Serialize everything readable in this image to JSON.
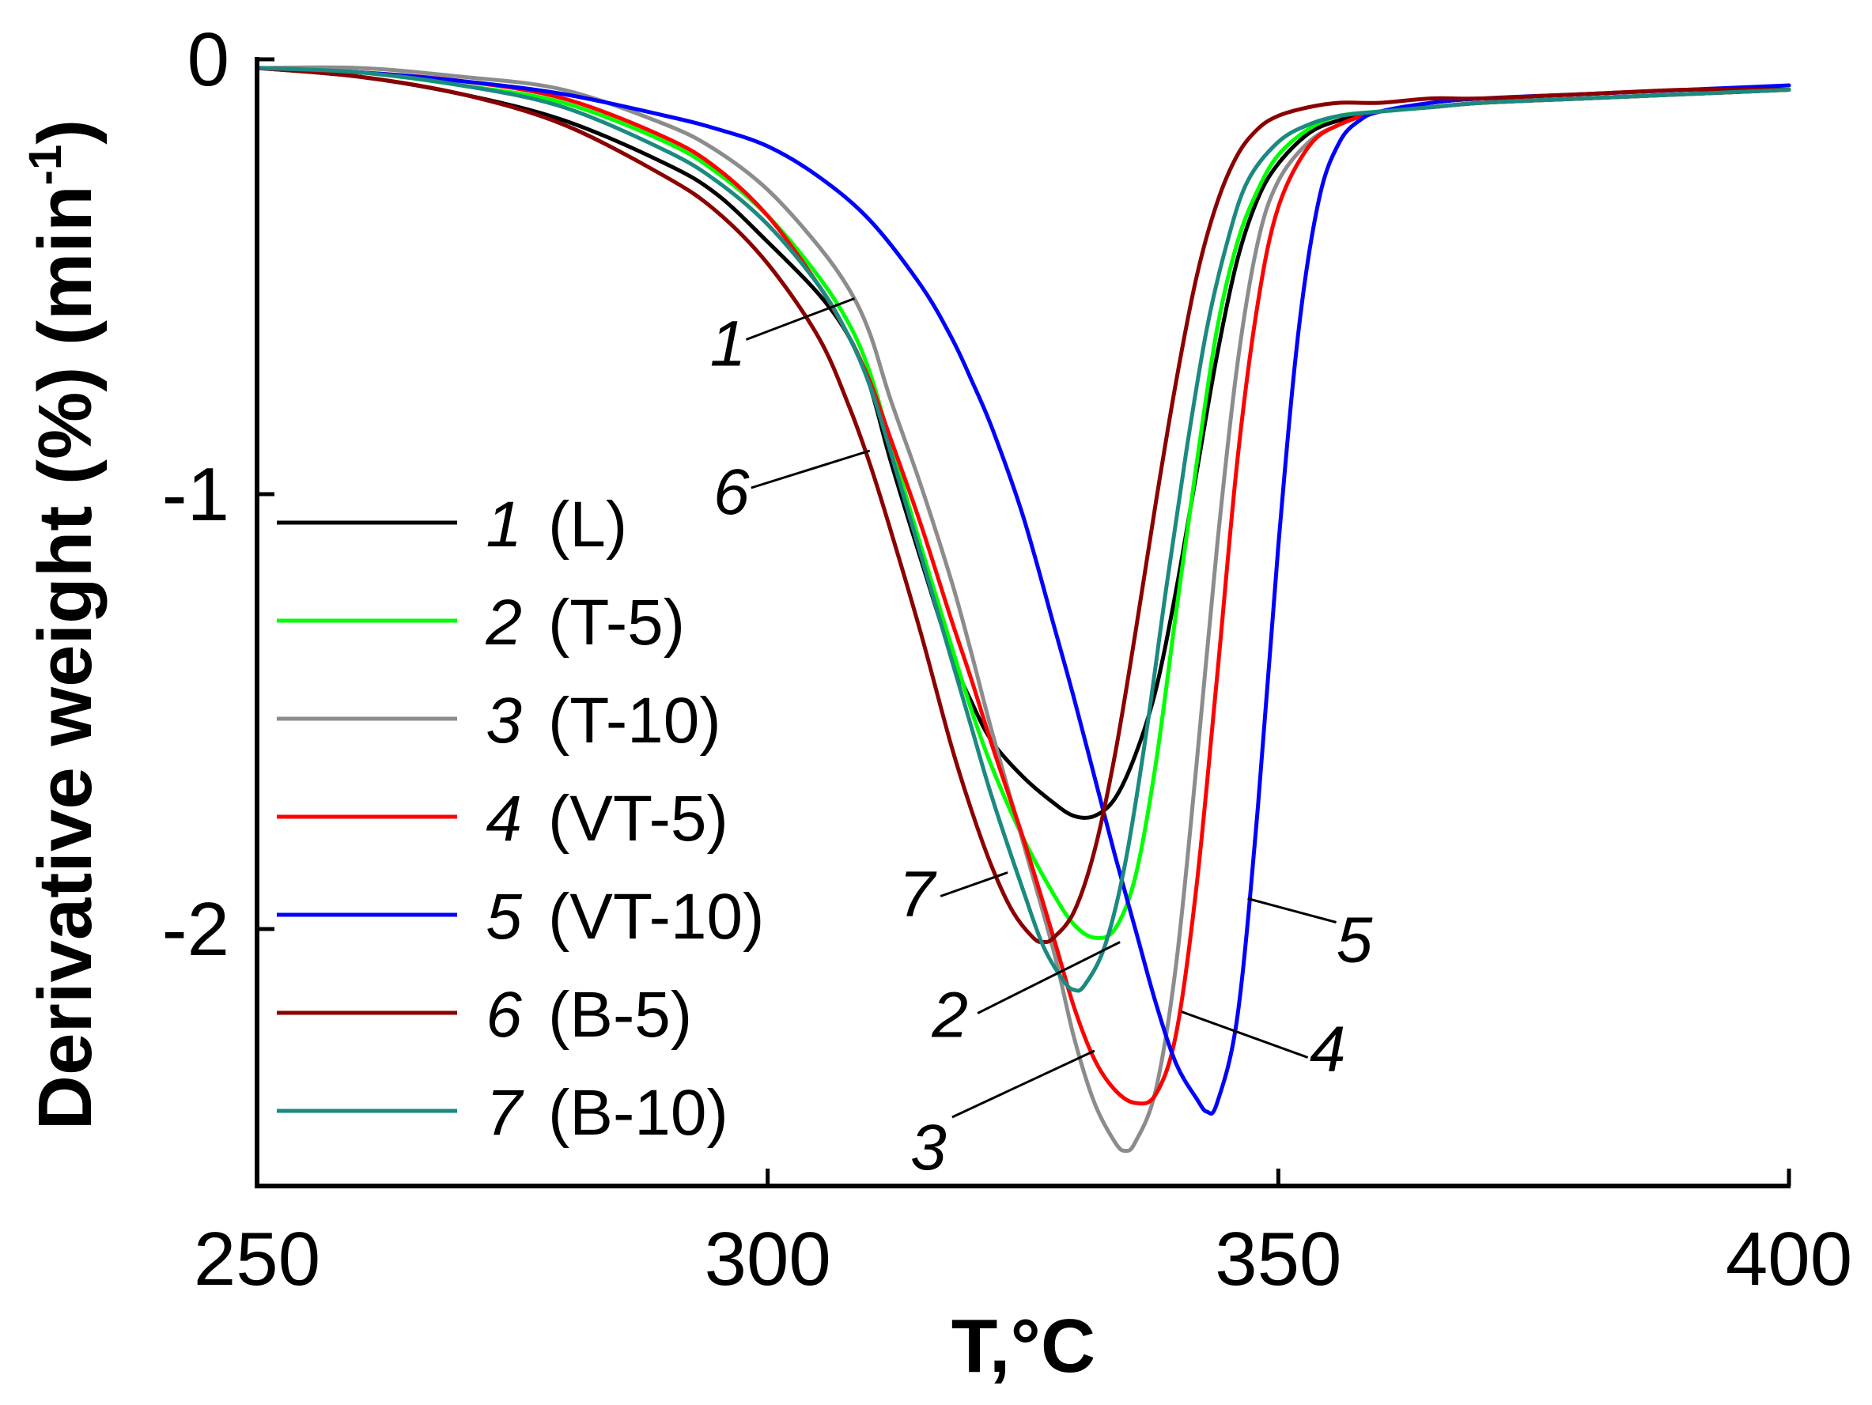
{
  "chart_data": {
    "type": "line",
    "xlabel": "T,°C",
    "ylabel": "Derivative weight (%) (min",
    "ylabel_superscript": "-1",
    "ylabel_suffix": ")",
    "xlim": [
      250,
      400
    ],
    "ylim": [
      -2.55,
      0.05
    ],
    "xticks": [
      250,
      300,
      350,
      400
    ],
    "xtick_labels": [
      "250",
      "300",
      "350",
      "400"
    ],
    "yticks": [
      0,
      -1,
      -2
    ],
    "ytick_labels": [
      "0",
      "-1",
      "-2"
    ],
    "grid": false,
    "legend_position": "left",
    "series": [
      {
        "id": "1",
        "name": "(L)",
        "color": "#000000",
        "points": [
          [
            250,
            -0.02
          ],
          [
            260,
            -0.04
          ],
          [
            270,
            -0.08
          ],
          [
            280,
            -0.14
          ],
          [
            290,
            -0.24
          ],
          [
            295,
            -0.31
          ],
          [
            300,
            -0.42
          ],
          [
            305,
            -0.54
          ],
          [
            308,
            -0.64
          ],
          [
            310,
            -0.75
          ],
          [
            312,
            -0.92
          ],
          [
            315,
            -1.15
          ],
          [
            318,
            -1.37
          ],
          [
            320,
            -1.48
          ],
          [
            322,
            -1.57
          ],
          [
            325,
            -1.65
          ],
          [
            328,
            -1.71
          ],
          [
            330,
            -1.74
          ],
          [
            332,
            -1.74
          ],
          [
            334,
            -1.7
          ],
          [
            336,
            -1.6
          ],
          [
            338,
            -1.45
          ],
          [
            340,
            -1.22
          ],
          [
            342,
            -0.95
          ],
          [
            344,
            -0.68
          ],
          [
            346,
            -0.46
          ],
          [
            348,
            -0.32
          ],
          [
            350,
            -0.24
          ],
          [
            353,
            -0.17
          ],
          [
            356,
            -0.14
          ],
          [
            360,
            -0.12
          ],
          [
            365,
            -0.11
          ],
          [
            370,
            -0.1
          ],
          [
            380,
            -0.09
          ],
          [
            390,
            -0.08
          ],
          [
            400,
            -0.07
          ]
        ]
      },
      {
        "id": "2",
        "name": "(T-5)",
        "color": "#00ff00",
        "points": [
          [
            250,
            -0.02
          ],
          [
            260,
            -0.03
          ],
          [
            270,
            -0.06
          ],
          [
            280,
            -0.1
          ],
          [
            290,
            -0.19
          ],
          [
            295,
            -0.26
          ],
          [
            300,
            -0.36
          ],
          [
            305,
            -0.5
          ],
          [
            308,
            -0.61
          ],
          [
            310,
            -0.72
          ],
          [
            312,
            -0.88
          ],
          [
            315,
            -1.12
          ],
          [
            318,
            -1.35
          ],
          [
            320,
            -1.5
          ],
          [
            322,
            -1.63
          ],
          [
            325,
            -1.79
          ],
          [
            328,
            -1.92
          ],
          [
            330,
            -1.99
          ],
          [
            332,
            -2.02
          ],
          [
            334,
            -2.0
          ],
          [
            336,
            -1.88
          ],
          [
            338,
            -1.62
          ],
          [
            340,
            -1.27
          ],
          [
            342,
            -0.93
          ],
          [
            344,
            -0.62
          ],
          [
            346,
            -0.42
          ],
          [
            348,
            -0.3
          ],
          [
            350,
            -0.22
          ],
          [
            353,
            -0.16
          ],
          [
            356,
            -0.13
          ],
          [
            360,
            -0.12
          ],
          [
            365,
            -0.11
          ],
          [
            370,
            -0.1
          ],
          [
            380,
            -0.09
          ],
          [
            390,
            -0.08
          ],
          [
            400,
            -0.07
          ]
        ]
      },
      {
        "id": "3",
        "name": "(T-10)",
        "color": "#8c8c8c",
        "points": [
          [
            250,
            -0.02
          ],
          [
            260,
            -0.02
          ],
          [
            270,
            -0.04
          ],
          [
            280,
            -0.07
          ],
          [
            290,
            -0.15
          ],
          [
            295,
            -0.21
          ],
          [
            300,
            -0.3
          ],
          [
            305,
            -0.43
          ],
          [
            308,
            -0.53
          ],
          [
            310,
            -0.63
          ],
          [
            312,
            -0.78
          ],
          [
            315,
            -0.98
          ],
          [
            318,
            -1.2
          ],
          [
            320,
            -1.37
          ],
          [
            322,
            -1.55
          ],
          [
            325,
            -1.8
          ],
          [
            328,
            -2.05
          ],
          [
            330,
            -2.25
          ],
          [
            332,
            -2.4
          ],
          [
            334,
            -2.49
          ],
          [
            335,
            -2.51
          ],
          [
            336,
            -2.49
          ],
          [
            338,
            -2.37
          ],
          [
            340,
            -2.08
          ],
          [
            342,
            -1.62
          ],
          [
            344,
            -1.12
          ],
          [
            346,
            -0.7
          ],
          [
            348,
            -0.42
          ],
          [
            350,
            -0.28
          ],
          [
            353,
            -0.19
          ],
          [
            356,
            -0.15
          ],
          [
            360,
            -0.12
          ],
          [
            365,
            -0.11
          ],
          [
            370,
            -0.1
          ],
          [
            380,
            -0.09
          ],
          [
            390,
            -0.08
          ],
          [
            400,
            -0.07
          ]
        ]
      },
      {
        "id": "4",
        "name": "(VT-5)",
        "color": "#ff0000",
        "points": [
          [
            250,
            -0.02
          ],
          [
            260,
            -0.03
          ],
          [
            270,
            -0.05
          ],
          [
            280,
            -0.09
          ],
          [
            290,
            -0.18
          ],
          [
            295,
            -0.25
          ],
          [
            300,
            -0.36
          ],
          [
            305,
            -0.52
          ],
          [
            308,
            -0.64
          ],
          [
            310,
            -0.74
          ],
          [
            312,
            -0.87
          ],
          [
            315,
            -1.07
          ],
          [
            318,
            -1.29
          ],
          [
            320,
            -1.43
          ],
          [
            322,
            -1.58
          ],
          [
            325,
            -1.79
          ],
          [
            328,
            -2.02
          ],
          [
            330,
            -2.18
          ],
          [
            332,
            -2.3
          ],
          [
            334,
            -2.37
          ],
          [
            336,
            -2.4
          ],
          [
            338,
            -2.38
          ],
          [
            340,
            -2.24
          ],
          [
            342,
            -1.9
          ],
          [
            344,
            -1.42
          ],
          [
            346,
            -0.92
          ],
          [
            348,
            -0.56
          ],
          [
            350,
            -0.34
          ],
          [
            353,
            -0.2
          ],
          [
            356,
            -0.15
          ],
          [
            360,
            -0.12
          ],
          [
            365,
            -0.11
          ],
          [
            370,
            -0.1
          ],
          [
            380,
            -0.09
          ],
          [
            390,
            -0.08
          ],
          [
            400,
            -0.07
          ]
        ]
      },
      {
        "id": "5",
        "name": "(VT-10)",
        "color": "#0000ff",
        "points": [
          [
            250,
            -0.02
          ],
          [
            260,
            -0.03
          ],
          [
            270,
            -0.05
          ],
          [
            280,
            -0.08
          ],
          [
            290,
            -0.13
          ],
          [
            295,
            -0.16
          ],
          [
            300,
            -0.2
          ],
          [
            305,
            -0.27
          ],
          [
            310,
            -0.37
          ],
          [
            315,
            -0.52
          ],
          [
            318,
            -0.64
          ],
          [
            320,
            -0.74
          ],
          [
            322,
            -0.85
          ],
          [
            325,
            -1.05
          ],
          [
            328,
            -1.3
          ],
          [
            330,
            -1.47
          ],
          [
            332,
            -1.65
          ],
          [
            334,
            -1.83
          ],
          [
            336,
            -2.0
          ],
          [
            338,
            -2.17
          ],
          [
            340,
            -2.31
          ],
          [
            342,
            -2.39
          ],
          [
            343,
            -2.42
          ],
          [
            344,
            -2.4
          ],
          [
            346,
            -2.2
          ],
          [
            348,
            -1.72
          ],
          [
            350,
            -1.12
          ],
          [
            352,
            -0.62
          ],
          [
            354,
            -0.32
          ],
          [
            356,
            -0.19
          ],
          [
            358,
            -0.14
          ],
          [
            360,
            -0.12
          ],
          [
            365,
            -0.1
          ],
          [
            370,
            -0.09
          ],
          [
            380,
            -0.08
          ],
          [
            390,
            -0.07
          ],
          [
            400,
            -0.06
          ]
        ]
      },
      {
        "id": "6",
        "name": "(B-5)",
        "color": "#8b0000",
        "points": [
          [
            250,
            -0.02
          ],
          [
            260,
            -0.04
          ],
          [
            270,
            -0.08
          ],
          [
            280,
            -0.15
          ],
          [
            290,
            -0.27
          ],
          [
            295,
            -0.35
          ],
          [
            300,
            -0.47
          ],
          [
            305,
            -0.64
          ],
          [
            308,
            -0.8
          ],
          [
            310,
            -0.93
          ],
          [
            312,
            -1.08
          ],
          [
            315,
            -1.32
          ],
          [
            318,
            -1.58
          ],
          [
            320,
            -1.73
          ],
          [
            322,
            -1.86
          ],
          [
            324,
            -1.96
          ],
          [
            326,
            -2.02
          ],
          [
            327,
            -2.03
          ],
          [
            328,
            -2.02
          ],
          [
            330,
            -1.96
          ],
          [
            332,
            -1.82
          ],
          [
            334,
            -1.6
          ],
          [
            336,
            -1.32
          ],
          [
            338,
            -1.02
          ],
          [
            340,
            -0.74
          ],
          [
            342,
            -0.5
          ],
          [
            344,
            -0.33
          ],
          [
            346,
            -0.22
          ],
          [
            348,
            -0.16
          ],
          [
            350,
            -0.13
          ],
          [
            353,
            -0.11
          ],
          [
            356,
            -0.1
          ],
          [
            360,
            -0.1
          ],
          [
            365,
            -0.09
          ],
          [
            370,
            -0.09
          ],
          [
            380,
            -0.08
          ],
          [
            390,
            -0.07
          ],
          [
            400,
            -0.07
          ]
        ]
      },
      {
        "id": "7",
        "name": "(B-10)",
        "color": "#1b8a80",
        "points": [
          [
            250,
            -0.02
          ],
          [
            260,
            -0.03
          ],
          [
            270,
            -0.06
          ],
          [
            280,
            -0.11
          ],
          [
            290,
            -0.21
          ],
          [
            295,
            -0.28
          ],
          [
            300,
            -0.38
          ],
          [
            305,
            -0.52
          ],
          [
            308,
            -0.64
          ],
          [
            310,
            -0.75
          ],
          [
            312,
            -0.9
          ],
          [
            315,
            -1.14
          ],
          [
            318,
            -1.38
          ],
          [
            320,
            -1.54
          ],
          [
            322,
            -1.7
          ],
          [
            325,
            -1.91
          ],
          [
            327,
            -2.04
          ],
          [
            329,
            -2.12
          ],
          [
            330,
            -2.14
          ],
          [
            331,
            -2.13
          ],
          [
            333,
            -2.04
          ],
          [
            335,
            -1.85
          ],
          [
            337,
            -1.56
          ],
          [
            339,
            -1.22
          ],
          [
            341,
            -0.9
          ],
          [
            343,
            -0.62
          ],
          [
            345,
            -0.42
          ],
          [
            347,
            -0.28
          ],
          [
            350,
            -0.19
          ],
          [
            353,
            -0.15
          ],
          [
            356,
            -0.13
          ],
          [
            360,
            -0.12
          ],
          [
            365,
            -0.11
          ],
          [
            370,
            -0.1
          ],
          [
            380,
            -0.09
          ],
          [
            390,
            -0.08
          ],
          [
            400,
            -0.07
          ]
        ]
      }
    ],
    "curve_labels": [
      {
        "text": "1",
        "series": "1",
        "anchor": [
          308.5,
          -0.55
        ]
      },
      {
        "text": "6",
        "series": "6",
        "anchor": [
          310,
          -0.9
        ]
      },
      {
        "text": "7",
        "series": "7",
        "anchor": [
          323.5,
          -1.87
        ]
      },
      {
        "text": "2",
        "series": "2",
        "anchor": [
          334.5,
          -2.03
        ]
      },
      {
        "text": "3",
        "series": "3",
        "anchor": [
          332,
          -2.28
        ]
      },
      {
        "text": "4",
        "series": "4",
        "anchor": [
          340.5,
          -2.19
        ]
      },
      {
        "text": "5",
        "series": "5",
        "anchor": [
          347,
          -1.93
        ]
      }
    ]
  }
}
